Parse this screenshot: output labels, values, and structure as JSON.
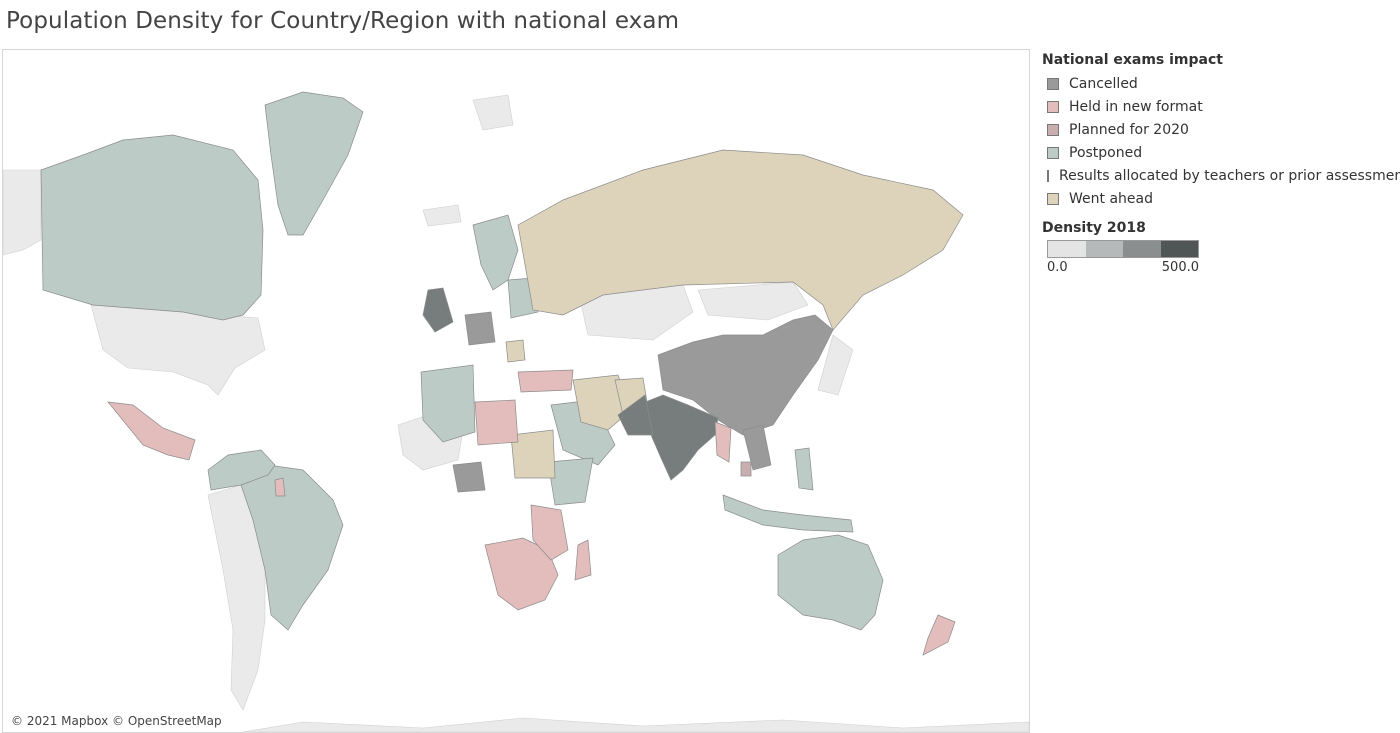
{
  "title": "Population Density for Country/Region with national exam",
  "map": {
    "attribution": "© 2021 Mapbox © OpenStreetMap",
    "water_color": "#ffffff",
    "no_data_land_color": "#eaeaea",
    "border_color": "#8c8c8c"
  },
  "legend": {
    "title": "National exams impact",
    "items": [
      {
        "label": "Cancelled",
        "color": "#9a9a9a"
      },
      {
        "label": "Held in new format",
        "color": "#e3bcbc"
      },
      {
        "label": "Planned for 2020",
        "color": "#c9aeb0"
      },
      {
        "label": "Postponed",
        "color": "#bccbc6"
      },
      {
        "label": "Results allocated by teachers or prior assessment",
        "color": "#777c7c"
      },
      {
        "label": "Went ahead",
        "color": "#ddd3bb"
      }
    ]
  },
  "density_legend": {
    "title": "Density 2018",
    "min_label": "0.0",
    "max_label": "500.0",
    "steps": [
      "#e4e4e4",
      "#b6b9b9",
      "#8a8e8e",
      "#505656"
    ]
  },
  "regions": [
    {
      "name": "Canada",
      "category": "Postponed"
    },
    {
      "name": "Greenland",
      "category": "Postponed"
    },
    {
      "name": "Mexico",
      "category": "Held in new format"
    },
    {
      "name": "Brazil",
      "category": "Postponed"
    },
    {
      "name": "Russia",
      "category": "Went ahead"
    },
    {
      "name": "China",
      "category": "Cancelled"
    },
    {
      "name": "India",
      "category": "Results allocated by teachers or prior assessment"
    },
    {
      "name": "Pakistan",
      "category": "Results allocated by teachers or prior assessment"
    },
    {
      "name": "Australia",
      "category": "Postponed"
    },
    {
      "name": "New Zealand",
      "category": "Held in new format"
    },
    {
      "name": "Madagascar",
      "category": "Held in new format"
    },
    {
      "name": "Libya",
      "category": "Held in new format"
    },
    {
      "name": "Turkey",
      "category": "Held in new format"
    },
    {
      "name": "Afghanistan",
      "category": "Went ahead"
    },
    {
      "name": "Sudan",
      "category": "Went ahead"
    },
    {
      "name": "Kazakhstan",
      "category": "Went ahead"
    },
    {
      "name": "United Kingdom",
      "category": "Results allocated by teachers or prior assessment"
    },
    {
      "name": "Scandinavia",
      "category": "Postponed"
    },
    {
      "name": "Southern Africa",
      "category": "Held in new format"
    },
    {
      "name": "Algeria",
      "category": "Postponed"
    },
    {
      "name": "Saudi Arabia",
      "category": "Postponed"
    },
    {
      "name": "Indonesia",
      "category": "Postponed"
    },
    {
      "name": "Philippines",
      "category": "Postponed"
    },
    {
      "name": "Myanmar",
      "category": "Held in new format"
    }
  ]
}
